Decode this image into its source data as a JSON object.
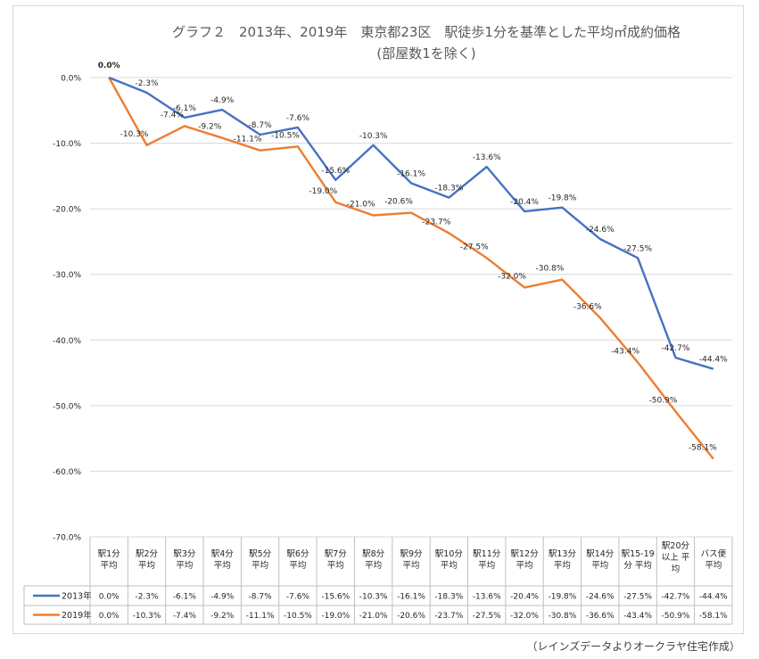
{
  "chart_data": {
    "type": "line",
    "title_line1": "グラフ２　2013年、2019年　東京都23区　駅徒歩1分を基準とした平均㎡成約価格",
    "title_line2": "(部屋数1を除く)",
    "categories": [
      [
        "駅1分",
        "平均"
      ],
      [
        "駅2分",
        "平均"
      ],
      [
        "駅3分",
        "平均"
      ],
      [
        "駅4分",
        "平均"
      ],
      [
        "駅5分",
        "平均"
      ],
      [
        "駅6分",
        "平均"
      ],
      [
        "駅7分",
        "平均"
      ],
      [
        "駅8分",
        "平均"
      ],
      [
        "駅9分",
        "平均"
      ],
      [
        "駅10分",
        "平均"
      ],
      [
        "駅11分",
        "平均"
      ],
      [
        "駅12分",
        "平均"
      ],
      [
        "駅13分",
        "平均"
      ],
      [
        "駅14分",
        "平均"
      ],
      [
        "駅15-19",
        "分 平均"
      ],
      [
        "駅20分",
        "以上 平",
        "均"
      ],
      [
        "バス便",
        "平均"
      ]
    ],
    "series": [
      {
        "name": "2013年",
        "color": "#4472c4",
        "values": [
          0.0,
          -2.3,
          -6.1,
          -4.9,
          -8.7,
          -7.6,
          -15.6,
          -10.3,
          -16.1,
          -18.3,
          -13.6,
          -20.4,
          -19.8,
          -24.6,
          -27.5,
          -42.7,
          -44.4
        ],
        "labels": [
          "0.0%",
          "-2.3%",
          "-6.1%",
          "-4.9%",
          "-8.7%",
          "-7.6%",
          "-15.6%",
          "-10.3%",
          "-16.1%",
          "-18.3%",
          "-13.6%",
          "-20.4%",
          "-19.8%",
          "-24.6%",
          "-27.5%",
          "-42.7%",
          "-44.4%"
        ]
      },
      {
        "name": "2019年",
        "color": "#ed7d31",
        "values": [
          0.0,
          -10.3,
          -7.4,
          -9.2,
          -11.1,
          -10.5,
          -19.0,
          -21.0,
          -20.6,
          -23.7,
          -27.5,
          -32.0,
          -30.8,
          -36.6,
          -43.4,
          -50.9,
          -58.1
        ],
        "labels": [
          "0.0%",
          "-10.3%",
          "-7.4%",
          "-9.2%",
          "-11.1%",
          "-10.5%",
          "-19.0%",
          "-21.0%",
          "-20.6%",
          "-23.7%",
          "-27.5%",
          "-32.0%",
          "-30.8%",
          "-36.6%",
          "-43.4%",
          "-50.9%",
          "-58.1%"
        ]
      }
    ],
    "yaxis": {
      "min": -70,
      "max": 0,
      "ticks": [
        0,
        -10,
        -20,
        -30,
        -40,
        -50,
        -60,
        -70
      ],
      "tick_labels": [
        "0.0%",
        "-10.0%",
        "-20.0%",
        "-30.0%",
        "-40.0%",
        "-50.0%",
        "-60.0%",
        "-70.0%"
      ]
    },
    "grid": true,
    "legend": "data-table",
    "source_note": "（レインズデータよりオークラヤ住宅作成）"
  }
}
